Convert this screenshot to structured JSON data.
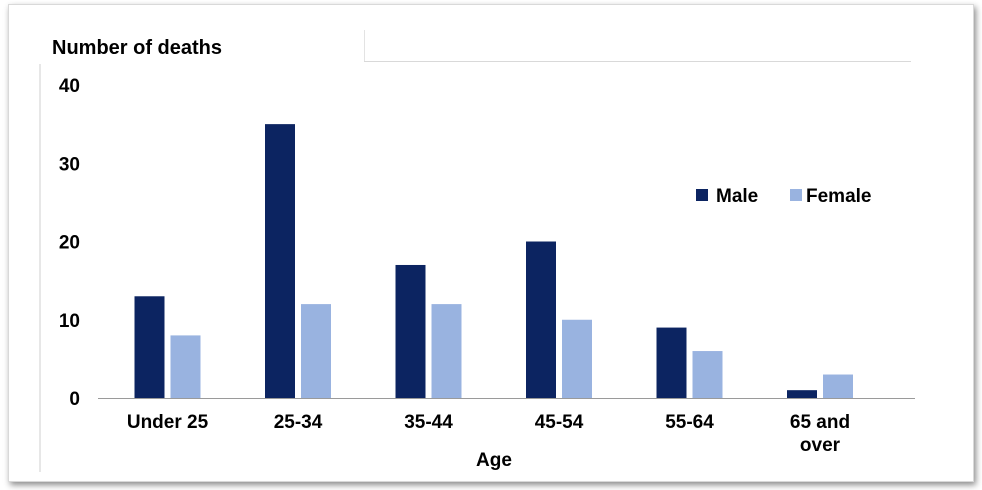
{
  "chart_data": {
    "type": "bar",
    "title": "",
    "ylabel": "Number of deaths",
    "xlabel": "Age",
    "ylim": [
      0,
      40
    ],
    "yticks": [
      0,
      10,
      20,
      30,
      40
    ],
    "categories": [
      "Under 25",
      "25-34",
      "35-44",
      "45-54",
      "55-64",
      "65 and over"
    ],
    "category_lines": [
      [
        "Under 25"
      ],
      [
        "25-34"
      ],
      [
        "35-44"
      ],
      [
        "45-54"
      ],
      [
        "55-64"
      ],
      [
        "65 and",
        "over"
      ]
    ],
    "series": [
      {
        "name": "Male",
        "values": [
          13,
          35,
          17,
          20,
          9,
          1
        ],
        "color": "#0c2461"
      },
      {
        "name": "Female",
        "values": [
          8,
          12,
          12,
          10,
          6,
          3
        ],
        "color": "#99b3e0"
      }
    ],
    "legend_position": "right",
    "grid": false
  }
}
